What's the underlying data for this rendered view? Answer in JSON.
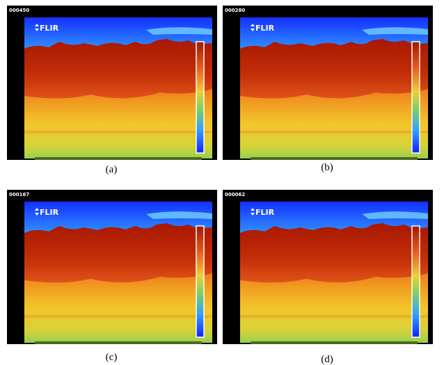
{
  "panels": [
    {
      "frame": "000450",
      "logo": "FLIR",
      "caption": "(a)"
    },
    {
      "frame": "000280",
      "logo": "FLIR",
      "caption": "(b)"
    },
    {
      "frame": "000167",
      "logo": "FLIR",
      "caption": "(c)"
    },
    {
      "frame": "000062",
      "logo": "FLIR",
      "caption": "(d)"
    }
  ]
}
